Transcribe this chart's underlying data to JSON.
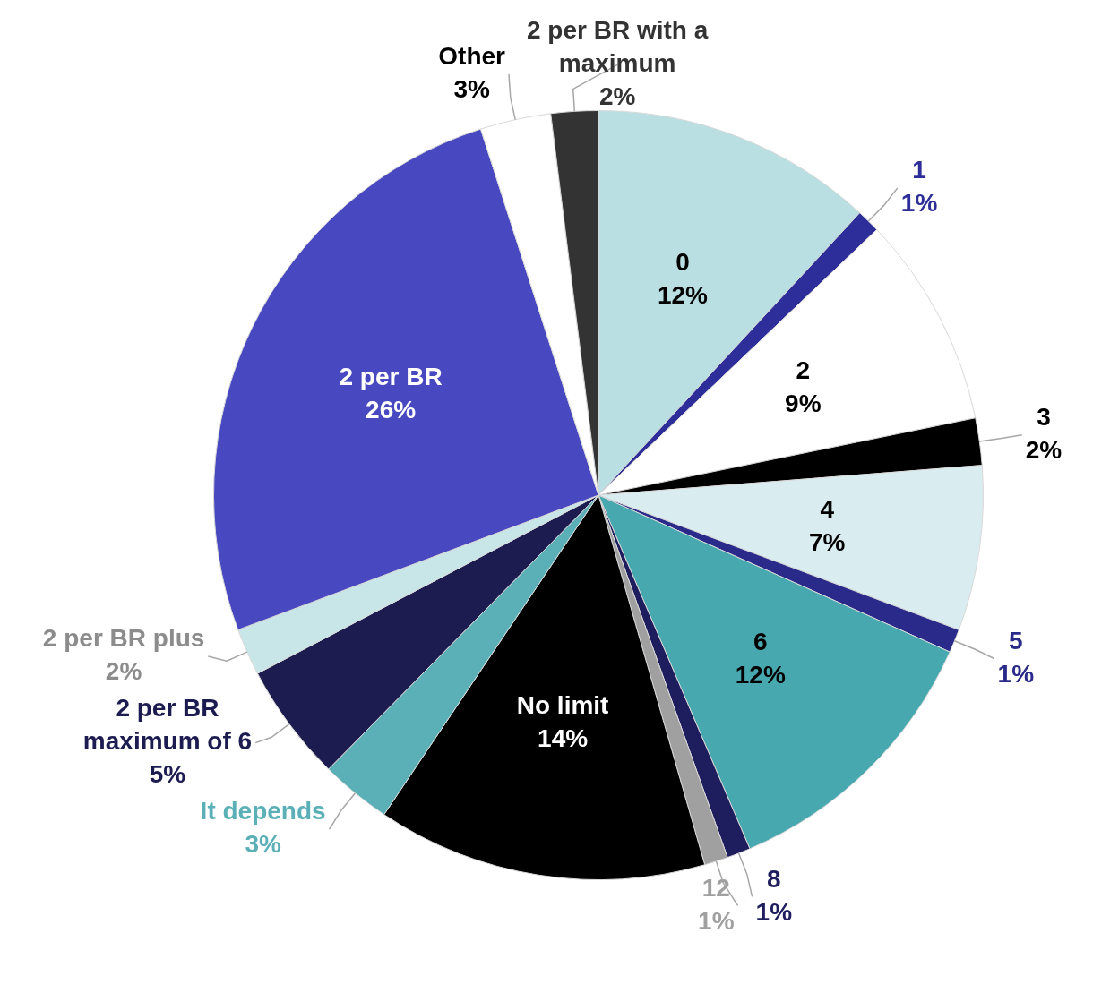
{
  "chart_data": {
    "type": "pie",
    "categories": [
      "0",
      "1",
      "2",
      "3",
      "4",
      "5",
      "6",
      "8",
      "12",
      "No limit",
      "It depends",
      "2 per BR maximum of 6",
      "2 per BR plus",
      "2 per BR",
      "Other",
      "2 per BR with a maximum"
    ],
    "values": [
      12,
      1,
      9,
      2,
      7,
      1,
      12,
      1,
      1,
      14,
      3,
      5,
      2,
      26,
      3,
      2
    ],
    "value_labels": [
      "12%",
      "1%",
      "9%",
      "2%",
      "7%",
      "1%",
      "12%",
      "1%",
      "1%",
      "14%",
      "3%",
      "5%",
      "2%",
      "26%",
      "3%",
      "2%"
    ],
    "colors": [
      "#b9dfe2",
      "#2e2e9a",
      "#ffffff",
      "#000000",
      "#d9ecef",
      "#2a2a8a",
      "#48a8b0",
      "#1e1e5e",
      "#a0a0a0",
      "#000000",
      "#5bb0b8",
      "#1c1c50",
      "#c8e6e8",
      "#4848c0",
      "#ffffff",
      "#333333"
    ],
    "legend": false
  }
}
